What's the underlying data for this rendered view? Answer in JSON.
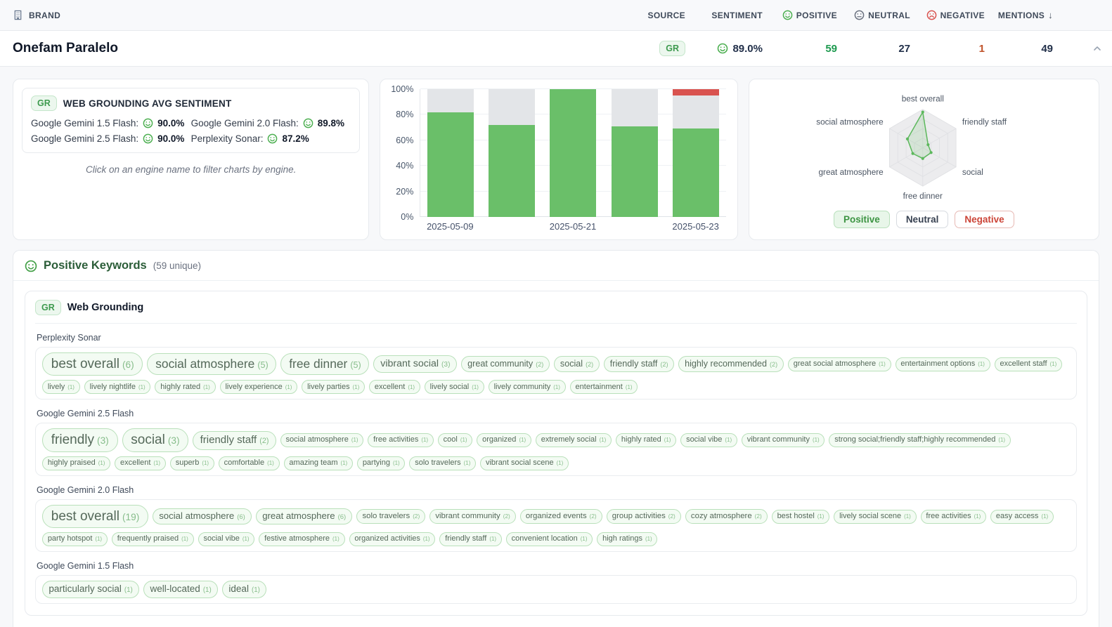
{
  "topbar": {
    "brand": "BRAND",
    "source": "SOURCE",
    "sentiment": "SENTIMENT",
    "positive": "POSITIVE",
    "neutral": "NEUTRAL",
    "negative": "NEGATIVE",
    "mentions": "MENTIONS",
    "sort_arrow": "↓"
  },
  "brand_row": {
    "name": "Onefam Paralelo",
    "source_badge": "GR",
    "sentiment": "89.0%",
    "positive": "59",
    "neutral": "27",
    "negative": "1",
    "mentions": "49"
  },
  "sentiment_card": {
    "badge": "GR",
    "title": "WEB GROUNDING AVG SENTIMENT",
    "entries": [
      {
        "engine": "Google Gemini 1.5 Flash:",
        "value": "90.0%"
      },
      {
        "engine": "Google Gemini 2.0 Flash:",
        "value": "89.8%"
      },
      {
        "engine": "Google Gemini 2.5 Flash:",
        "value": "90.0%"
      },
      {
        "engine": "Perplexity Sonar:",
        "value": "87.2%"
      }
    ],
    "note": "Click on an engine name to filter charts by engine."
  },
  "colors": {
    "positive_green": "#6abf69",
    "neutral_gray": "#e3e5e8",
    "negative_red": "#d9534f",
    "accent_green": "#4caf50",
    "neutral_face": "#6b7280",
    "negative_face": "#d9534f"
  },
  "chart_data": [
    {
      "type": "bar",
      "stacked": true,
      "x": [
        "2025-05-09",
        "",
        "2025-05-21",
        "",
        "2025-05-23"
      ],
      "series": [
        {
          "name": "positive",
          "color": "#6abf69",
          "values": [
            82,
            72,
            100,
            71,
            69
          ]
        },
        {
          "name": "neutral",
          "color": "#e3e5e8",
          "values": [
            18,
            28,
            0,
            29,
            26
          ]
        },
        {
          "name": "negative",
          "color": "#d9534f",
          "values": [
            0,
            0,
            0,
            0,
            5
          ]
        }
      ],
      "ylim": [
        0,
        100
      ],
      "yticks": [
        "0%",
        "20%",
        "40%",
        "60%",
        "80%",
        "100%"
      ],
      "grid": true,
      "legend_position": "none"
    },
    {
      "type": "radar",
      "axes": [
        "best overall",
        "friendly staff",
        "social",
        "free dinner",
        "great atmosphere",
        "social atmosphere"
      ],
      "series": [
        {
          "name": "Positive",
          "color": "#5cb85c",
          "values": [
            0.93,
            0.16,
            0.25,
            0.28,
            0.3,
            0.46
          ]
        }
      ],
      "legend": [
        {
          "label": "Positive",
          "state": "active"
        },
        {
          "label": "Neutral",
          "state": "default"
        },
        {
          "label": "Negative",
          "state": "negative"
        }
      ],
      "legend_position": "bottom"
    }
  ],
  "keywords": {
    "title": "Positive Keywords",
    "subtitle": "(59 unique)",
    "group_badge": "GR",
    "group_title": "Web Grounding",
    "engines": [
      {
        "name": "Perplexity Sonar",
        "keywords": [
          {
            "t": "best overall",
            "c": 6
          },
          {
            "t": "social atmosphere",
            "c": 5
          },
          {
            "t": "free dinner",
            "c": 5
          },
          {
            "t": "vibrant social",
            "c": 3
          },
          {
            "t": "great community",
            "c": 2
          },
          {
            "t": "social",
            "c": 2
          },
          {
            "t": "friendly staff",
            "c": 2
          },
          {
            "t": "highly recommended",
            "c": 2
          },
          {
            "t": "great social atmosphere",
            "c": 1
          },
          {
            "t": "entertainment options",
            "c": 1
          },
          {
            "t": "excellent staff",
            "c": 1
          },
          {
            "t": "lively",
            "c": 1
          },
          {
            "t": "lively nightlife",
            "c": 1
          },
          {
            "t": "highly rated",
            "c": 1
          },
          {
            "t": "lively experience",
            "c": 1
          },
          {
            "t": "lively parties",
            "c": 1
          },
          {
            "t": "excellent",
            "c": 1
          },
          {
            "t": "lively social",
            "c": 1
          },
          {
            "t": "lively community",
            "c": 1
          },
          {
            "t": "entertainment",
            "c": 1
          }
        ]
      },
      {
        "name": "Google Gemini 2.5 Flash",
        "keywords": [
          {
            "t": "friendly",
            "c": 3
          },
          {
            "t": "social",
            "c": 3
          },
          {
            "t": "friendly staff",
            "c": 2
          },
          {
            "t": "social atmosphere",
            "c": 1
          },
          {
            "t": "free activities",
            "c": 1
          },
          {
            "t": "cool",
            "c": 1
          },
          {
            "t": "organized",
            "c": 1
          },
          {
            "t": "extremely social",
            "c": 1
          },
          {
            "t": "highly rated",
            "c": 1
          },
          {
            "t": "social vibe",
            "c": 1
          },
          {
            "t": "vibrant community",
            "c": 1
          },
          {
            "t": "strong social;friendly staff;highly recommended",
            "c": 1
          },
          {
            "t": "highly praised",
            "c": 1
          },
          {
            "t": "excellent",
            "c": 1
          },
          {
            "t": "superb",
            "c": 1
          },
          {
            "t": "comfortable",
            "c": 1
          },
          {
            "t": "amazing team",
            "c": 1
          },
          {
            "t": "partying",
            "c": 1
          },
          {
            "t": "solo travelers",
            "c": 1
          },
          {
            "t": "vibrant social scene",
            "c": 1
          }
        ]
      },
      {
        "name": "Google Gemini 2.0 Flash",
        "keywords": [
          {
            "t": "best overall",
            "c": 19
          },
          {
            "t": "social atmosphere",
            "c": 6
          },
          {
            "t": "great atmosphere",
            "c": 6
          },
          {
            "t": "solo travelers",
            "c": 2
          },
          {
            "t": "vibrant community",
            "c": 2
          },
          {
            "t": "organized events",
            "c": 2
          },
          {
            "t": "group activities",
            "c": 2
          },
          {
            "t": "cozy atmosphere",
            "c": 2
          },
          {
            "t": "best hostel",
            "c": 1
          },
          {
            "t": "lively social scene",
            "c": 1
          },
          {
            "t": "free activities",
            "c": 1
          },
          {
            "t": "easy access",
            "c": 1
          },
          {
            "t": "party hotspot",
            "c": 1
          },
          {
            "t": "frequently praised",
            "c": 1
          },
          {
            "t": "social vibe",
            "c": 1
          },
          {
            "t": "festive atmosphere",
            "c": 1
          },
          {
            "t": "organized activities",
            "c": 1
          },
          {
            "t": "friendly staff",
            "c": 1
          },
          {
            "t": "convenient location",
            "c": 1
          },
          {
            "t": "high ratings",
            "c": 1
          }
        ]
      },
      {
        "name": "Google Gemini 1.5 Flash",
        "keywords": [
          {
            "t": "particularly social",
            "c": 1
          },
          {
            "t": "well-located",
            "c": 1
          },
          {
            "t": "ideal",
            "c": 1
          }
        ]
      }
    ]
  }
}
